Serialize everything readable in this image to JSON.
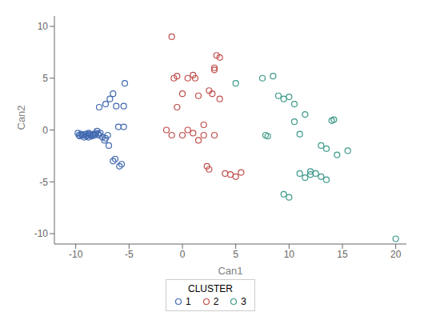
{
  "chart_data": {
    "type": "scatter",
    "xlabel": "Can1",
    "ylabel": "Can2",
    "xlim": [
      -12,
      21
    ],
    "ylim": [
      -11,
      11
    ],
    "xticks": [
      -10,
      -5,
      0,
      5,
      10,
      15,
      20
    ],
    "yticks": [
      -10,
      -5,
      0,
      5,
      10
    ],
    "marker": "o",
    "legend": "bottom",
    "legend_title": "CLUSTER",
    "series": [
      {
        "name": "1",
        "color": "#4169B0",
        "x": [
          -9.8,
          -9.7,
          -9.6,
          -9.5,
          -9.4,
          -9.3,
          -9.2,
          -9.1,
          -9.0,
          -8.9,
          -8.8,
          -8.8,
          -8.7,
          -8.6,
          -8.5,
          -8.4,
          -8.3,
          -8.2,
          -8.1,
          -8.0,
          -7.9,
          -7.8,
          -7.7,
          -7.5,
          -7.3,
          -7.2,
          -7.0,
          -6.9,
          -6.5,
          -6.3,
          -5.9,
          -5.7,
          -5.5,
          -5.4,
          -7.8,
          -7.2,
          -6.8,
          -6.5,
          -6.2,
          -6.0,
          -5.5
        ],
        "y": [
          -0.3,
          -0.5,
          -0.6,
          -0.4,
          -0.5,
          -0.5,
          -0.7,
          -0.4,
          -0.6,
          -0.5,
          -0.3,
          -0.7,
          -0.4,
          -0.5,
          -0.6,
          -0.5,
          -0.4,
          -0.5,
          -0.3,
          -0.1,
          -0.4,
          -0.5,
          -0.3,
          -0.7,
          -1.0,
          -0.8,
          -0.5,
          -1.5,
          -3.0,
          -2.8,
          -3.5,
          -3.3,
          2.3,
          4.5,
          2.2,
          2.5,
          3.0,
          3.5,
          2.3,
          0.3,
          0.3
        ]
      },
      {
        "name": "2",
        "color": "#C0504D",
        "x": [
          -1.0,
          -0.8,
          -0.5,
          0.0,
          0.5,
          1.0,
          1.2,
          1.5,
          2.0,
          2.5,
          2.8,
          3.0,
          3.0,
          3.2,
          3.5,
          4.0,
          4.5,
          5.0,
          5.5,
          -1.5,
          -1.0,
          -0.5,
          0.0,
          0.5,
          1.0,
          1.5,
          2.0,
          2.3,
          2.5,
          3.0,
          3.5
        ],
        "y": [
          9.0,
          5.0,
          5.2,
          3.5,
          5.0,
          5.3,
          5.0,
          3.3,
          0.5,
          3.8,
          3.5,
          6.0,
          5.8,
          7.2,
          7.0,
          -4.2,
          -4.3,
          -4.5,
          -4.1,
          0.0,
          -0.5,
          2.2,
          -0.5,
          0.0,
          -0.3,
          -1.0,
          -0.5,
          -3.5,
          -3.8,
          -0.5,
          3.0
        ]
      },
      {
        "name": "3",
        "color": "#3D9A8B",
        "x": [
          5.0,
          7.8,
          8.0,
          9.0,
          9.5,
          10.0,
          10.5,
          10.5,
          11.0,
          11.5,
          12.0,
          12.5,
          13.0,
          13.5,
          14.0,
          14.2,
          14.5,
          15.5,
          20.0,
          7.5,
          8.5,
          9.5,
          10.0,
          11.0,
          11.5,
          12.0,
          13.0,
          13.5
        ],
        "y": [
          4.5,
          -0.5,
          -0.6,
          3.3,
          3.0,
          3.2,
          0.8,
          2.5,
          -0.4,
          1.5,
          -4.3,
          -4.2,
          -1.5,
          -1.8,
          0.9,
          1.0,
          -2.4,
          -2.0,
          -10.5,
          5.0,
          5.2,
          -6.2,
          -6.5,
          -4.2,
          -4.6,
          -4.0,
          -4.5,
          -4.8
        ]
      }
    ]
  }
}
